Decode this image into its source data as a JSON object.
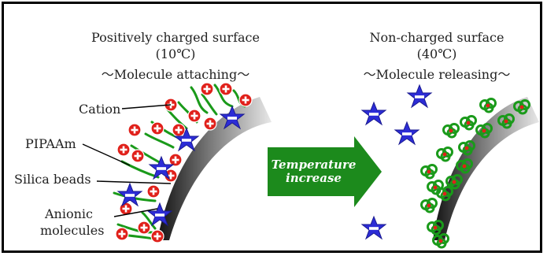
{
  "left_panel": {
    "title": "Positively charged surface",
    "temperature": "(10℃)",
    "state": "～Molecule attaching～"
  },
  "right_panel": {
    "title": "Non-charged surface",
    "temperature": "(40℃)",
    "state": "～Molecule releasing～"
  },
  "labels": {
    "cation": "Cation",
    "pipaam": "PIPAAm",
    "silica": "Silica  beads",
    "anionic_line1": "Anionic",
    "anionic_line2": "molecules"
  },
  "arrow": {
    "line1": "Temperature",
    "line2": "increase"
  },
  "colors": {
    "chain": "#1a9a1a",
    "cation_fill": "#e0201a",
    "anion_fill": "#2c2cd6",
    "arrow_fill": "#1c8a1c"
  }
}
